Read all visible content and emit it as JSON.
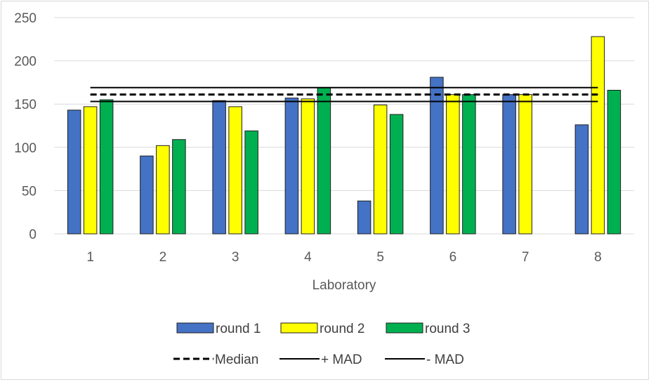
{
  "chart_data": {
    "type": "bar",
    "title": "",
    "xlabel": "Laboratory",
    "ylabel": "",
    "ylim": [
      0,
      250
    ],
    "yticks": [
      0,
      50,
      100,
      150,
      200,
      250
    ],
    "categories": [
      "1",
      "2",
      "3",
      "4",
      "5",
      "6",
      "7",
      "8"
    ],
    "grid": true,
    "legend_position": "bottom",
    "series": [
      {
        "name": "round 1",
        "color": "#4472c4",
        "values": [
          143,
          90,
          154,
          157,
          38,
          181,
          161,
          126
        ]
      },
      {
        "name": "round 2",
        "color": "#ffff00",
        "values": [
          147,
          102,
          147,
          156,
          149,
          161,
          161,
          228
        ]
      },
      {
        "name": "round 3",
        "color": "#00b050",
        "values": [
          155,
          109,
          119,
          169,
          138,
          161,
          null,
          166
        ]
      }
    ],
    "reference_lines": [
      {
        "name": "Median",
        "value": 161,
        "style": "dashed",
        "color": "#000000"
      },
      {
        "name": "+ MAD",
        "value": 169,
        "style": "solid",
        "color": "#000000"
      },
      {
        "name": "- MAD",
        "value": 153,
        "style": "solid",
        "color": "#000000"
      }
    ]
  }
}
